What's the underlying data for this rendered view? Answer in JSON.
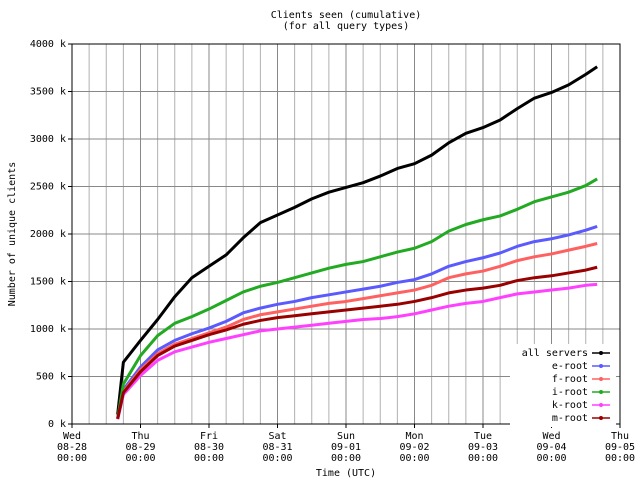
{
  "chart_data": {
    "type": "line",
    "title": "Clients seen (cumulative)",
    "subtitle": "(for all query types)",
    "x_label": "Time (UTC)",
    "y_label": "Number of unique clients",
    "x": [
      "08-28 16:00",
      "08-28 18:00",
      "08-29 00:00",
      "08-29 06:00",
      "08-29 12:00",
      "08-29 18:00",
      "08-30 00:00",
      "08-30 06:00",
      "08-30 12:00",
      "08-30 18:00",
      "08-31 00:00",
      "08-31 06:00",
      "08-31 12:00",
      "08-31 18:00",
      "09-01 00:00",
      "09-01 06:00",
      "09-01 12:00",
      "09-01 18:00",
      "09-02 00:00",
      "09-02 06:00",
      "09-02 12:00",
      "09-02 18:00",
      "09-03 00:00",
      "09-03 06:00",
      "09-03 12:00",
      "09-03 18:00",
      "09-04 00:00",
      "09-04 06:00",
      "09-04 12:00",
      "09-04 16:00"
    ],
    "series": [
      {
        "name": "all servers",
        "color": "#000000",
        "values": [
          100,
          650,
          880,
          1100,
          1340,
          1540,
          1660,
          1780,
          1960,
          2120,
          2200,
          2280,
          2370,
          2440,
          2490,
          2540,
          2610,
          2690,
          2740,
          2830,
          2960,
          3060,
          3120,
          3200,
          3320,
          3430,
          3490,
          3570,
          3680,
          3760
        ]
      },
      {
        "name": "e-root",
        "color": "#5a5aff",
        "values": [
          60,
          360,
          600,
          780,
          880,
          950,
          1010,
          1080,
          1170,
          1220,
          1260,
          1290,
          1330,
          1360,
          1390,
          1420,
          1450,
          1490,
          1520,
          1580,
          1660,
          1710,
          1750,
          1800,
          1870,
          1920,
          1950,
          1990,
          2040,
          2080
        ]
      },
      {
        "name": "f-root",
        "color": "#ff6060",
        "values": [
          55,
          340,
          570,
          740,
          840,
          900,
          960,
          1020,
          1100,
          1150,
          1180,
          1210,
          1240,
          1270,
          1290,
          1320,
          1350,
          1380,
          1410,
          1460,
          1540,
          1580,
          1610,
          1660,
          1720,
          1760,
          1790,
          1830,
          1870,
          1900
        ]
      },
      {
        "name": "i-root",
        "color": "#22aa22",
        "values": [
          60,
          420,
          720,
          930,
          1060,
          1130,
          1210,
          1300,
          1390,
          1450,
          1490,
          1540,
          1590,
          1640,
          1680,
          1710,
          1760,
          1810,
          1850,
          1920,
          2030,
          2100,
          2150,
          2190,
          2260,
          2340,
          2390,
          2440,
          2510,
          2580
        ]
      },
      {
        "name": "k-root",
        "color": "#ff40ff",
        "values": [
          50,
          310,
          510,
          670,
          760,
          810,
          860,
          900,
          940,
          980,
          1000,
          1020,
          1040,
          1060,
          1080,
          1100,
          1110,
          1130,
          1160,
          1200,
          1240,
          1270,
          1290,
          1330,
          1370,
          1390,
          1410,
          1430,
          1460,
          1470
        ]
      },
      {
        "name": "m-root",
        "color": "#990000",
        "values": [
          55,
          330,
          550,
          720,
          820,
          880,
          940,
          990,
          1050,
          1090,
          1120,
          1140,
          1160,
          1180,
          1200,
          1220,
          1240,
          1260,
          1290,
          1330,
          1380,
          1410,
          1430,
          1460,
          1510,
          1540,
          1560,
          1590,
          1620,
          1650
        ]
      }
    ],
    "xlim": [
      "08-28 00:00",
      "09-05 00:00"
    ],
    "xticks": [
      {
        "value": "08-28 00:00",
        "label": "Wed 08-28 00:00"
      },
      {
        "value": "08-29 00:00",
        "label": "Thu 08-29 00:00"
      },
      {
        "value": "08-30 00:00",
        "label": "Fri 08-30 00:00"
      },
      {
        "value": "08-31 00:00",
        "label": "Sat 08-31 00:00"
      },
      {
        "value": "09-01 00:00",
        "label": "Sun 09-01 00:00"
      },
      {
        "value": "09-02 00:00",
        "label": "Mon 09-02 00:00"
      },
      {
        "value": "09-03 00:00",
        "label": "Tue 09-03 00:00"
      },
      {
        "value": "09-04 00:00",
        "label": "Wed 09-04 00:00"
      },
      {
        "value": "09-05 00:00",
        "label": "Thu 09-05 00:00"
      }
    ],
    "ylim": [
      0,
      4000
    ],
    "yticks": [
      {
        "value": 0,
        "label": "0 k"
      },
      {
        "value": 500,
        "label": "500 k"
      },
      {
        "value": 1000,
        "label": "1000 k"
      },
      {
        "value": 1500,
        "label": "1500 k"
      },
      {
        "value": 2000,
        "label": "2000 k"
      },
      {
        "value": 2500,
        "label": "2500 k"
      },
      {
        "value": 3000,
        "label": "3000 k"
      },
      {
        "value": 3500,
        "label": "3500 k"
      },
      {
        "value": 4000,
        "label": "4000 k"
      }
    ],
    "grid": true,
    "legend": "lower right"
  }
}
